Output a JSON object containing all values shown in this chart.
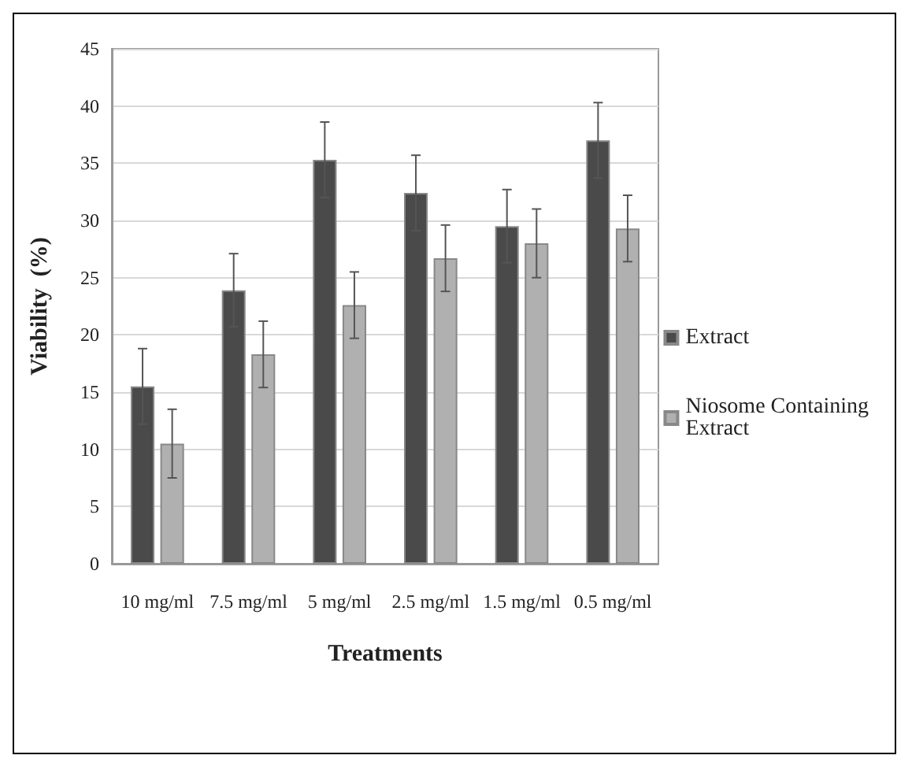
{
  "chart_data": {
    "type": "bar",
    "xlabel": "Treatments",
    "ylabel": "Viability  (%)",
    "categories": [
      "10 mg/ml",
      "7.5 mg/ml",
      "5 mg/ml",
      "2.5 mg/ml",
      "1.5 mg/ml",
      "0.5 mg/ml"
    ],
    "series": [
      {
        "name": "Extract",
        "color": "#4a4a4a",
        "values": [
          15.5,
          23.9,
          35.3,
          32.4,
          29.5,
          37.0
        ],
        "errors": [
          3.3,
          3.2,
          3.3,
          3.3,
          3.2,
          3.3
        ]
      },
      {
        "name": "Niosome Containing Extract",
        "color": "#b0b0b0",
        "values": [
          10.5,
          18.3,
          22.6,
          26.7,
          28.0,
          29.3
        ],
        "errors": [
          3.0,
          2.9,
          2.9,
          2.9,
          3.0,
          2.9
        ]
      }
    ],
    "ylim": [
      0,
      45
    ],
    "yticks": [
      0,
      5,
      10,
      15,
      20,
      25,
      30,
      35,
      40,
      45
    ],
    "grid": "y",
    "legend": "right"
  }
}
